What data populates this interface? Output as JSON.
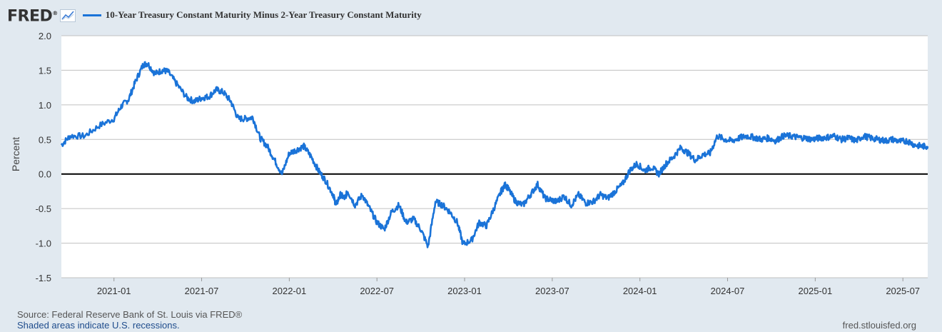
{
  "brand": {
    "logo_text": "FRED",
    "logo_mark": "®"
  },
  "colors": {
    "series": "#1a73d8",
    "background": "#e1e9f0",
    "plot": "#ffffff",
    "grid": "#c0c0c0",
    "zero_line": "#000000"
  },
  "chart_data": {
    "type": "line",
    "title": "10-Year Treasury Constant Maturity Minus 2-Year Treasury Constant Maturity",
    "xlabel": "",
    "ylabel": "Percent",
    "ylim": [
      -1.5,
      2.0
    ],
    "yticks": [
      "2.0",
      "1.5",
      "1.0",
      "0.5",
      "0.0",
      "-0.5",
      "-1.0",
      "-1.5"
    ],
    "xticks": [
      "2021-01",
      "2021-07",
      "2022-01",
      "2022-07",
      "2023-01",
      "2023-07",
      "2024-01",
      "2024-07",
      "2025-01",
      "2025-07"
    ],
    "x_range_months": [
      -3.6,
      55.7
    ],
    "series": [
      {
        "name": "10-Year Treasury Constant Maturity Minus 2-Year Treasury Constant Maturity",
        "x_months_since_2021_01": [
          -3.6,
          -3.0,
          -2.0,
          -1.0,
          0.0,
          0.5,
          1.0,
          1.5,
          2.0,
          2.3,
          2.8,
          3.3,
          3.7,
          4.3,
          5.0,
          5.5,
          6.0,
          6.5,
          7.0,
          7.5,
          8.0,
          8.5,
          9.0,
          9.5,
          10.0,
          10.5,
          11.0,
          11.5,
          12.0,
          12.5,
          13.0,
          13.5,
          14.0,
          14.5,
          15.0,
          15.2,
          15.5,
          15.8,
          16.0,
          16.5,
          17.0,
          17.5,
          18.0,
          18.5,
          19.0,
          19.5,
          20.0,
          20.5,
          21.0,
          21.5,
          22.0,
          22.5,
          23.0,
          23.5,
          23.9,
          24.5,
          25.0,
          25.5,
          26.0,
          26.5,
          26.8,
          27.0,
          27.5,
          28.0,
          28.5,
          29.0,
          29.5,
          30.0,
          30.3,
          30.8,
          31.3,
          31.8,
          32.3,
          32.8,
          33.3,
          33.8,
          34.3,
          34.8,
          35.3,
          35.8,
          36.3,
          36.8,
          37.3,
          37.8,
          38.3,
          38.8,
          39.3,
          39.8,
          40.3,
          40.8,
          41.3,
          41.8,
          42.3,
          42.8,
          43.3,
          43.8,
          44.3,
          44.8,
          45.3,
          45.8,
          46.3,
          46.8,
          47.3,
          47.8,
          48.3,
          48.8,
          49.3,
          49.8,
          50.3,
          50.8,
          51.3,
          51.8,
          52.3,
          52.8,
          53.3,
          53.8,
          54.3,
          54.8,
          55.3,
          55.7
        ],
        "values": [
          0.42,
          0.55,
          0.55,
          0.7,
          0.8,
          0.98,
          1.08,
          1.35,
          1.58,
          1.6,
          1.45,
          1.5,
          1.48,
          1.3,
          1.1,
          1.05,
          1.1,
          1.12,
          1.22,
          1.18,
          1.05,
          0.8,
          0.8,
          0.82,
          0.52,
          0.4,
          0.2,
          0.0,
          0.3,
          0.35,
          0.4,
          0.25,
          0.05,
          -0.1,
          -0.3,
          -0.45,
          -0.3,
          -0.35,
          -0.25,
          -0.45,
          -0.3,
          -0.5,
          -0.7,
          -0.8,
          -0.55,
          -0.45,
          -0.7,
          -0.65,
          -0.8,
          -1.05,
          -0.4,
          -0.45,
          -0.55,
          -0.7,
          -1.02,
          -0.95,
          -0.7,
          -0.75,
          -0.5,
          -0.25,
          -0.15,
          -0.22,
          -0.4,
          -0.45,
          -0.3,
          -0.15,
          -0.35,
          -0.38,
          -0.4,
          -0.32,
          -0.45,
          -0.3,
          -0.42,
          -0.4,
          -0.3,
          -0.35,
          -0.25,
          -0.15,
          0.05,
          0.15,
          0.05,
          0.1,
          0.0,
          0.15,
          0.25,
          0.38,
          0.3,
          0.2,
          0.28,
          0.3,
          0.55,
          0.5,
          0.48,
          0.52,
          0.55,
          0.53,
          0.5,
          0.52,
          0.48,
          0.55,
          0.55,
          0.53,
          0.52,
          0.5,
          0.52,
          0.53,
          0.55,
          0.5,
          0.52,
          0.48,
          0.55,
          0.52,
          0.5,
          0.48,
          0.5,
          0.47,
          0.48,
          0.42,
          0.4,
          0.4
        ]
      }
    ]
  },
  "footer": {
    "source": "Source: Federal Reserve Bank of St. Louis via FRED®",
    "shaded_note": "Shaded areas indicate U.S. recessions.",
    "url": "fred.stlouisfed.org"
  }
}
